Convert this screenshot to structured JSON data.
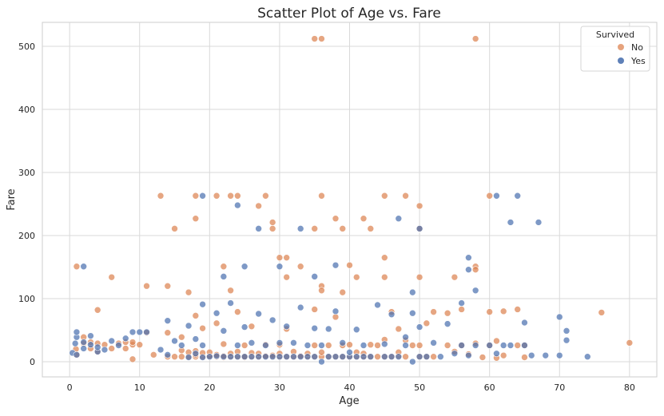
{
  "chart_data": {
    "type": "scatter",
    "title": "Scatter Plot of Age vs. Fare",
    "xlabel": "Age",
    "ylabel": "Fare",
    "xlim": [
      -3.9,
      83.9
    ],
    "ylim": [
      -24,
      538
    ],
    "xticks": [
      0,
      10,
      20,
      30,
      40,
      50,
      60,
      70,
      80
    ],
    "yticks": [
      0,
      100,
      200,
      300,
      400,
      500
    ],
    "grid": true,
    "legend": {
      "title": "Survived",
      "placement": "top-right"
    },
    "series": [
      {
        "name": "No",
        "color": "#dd8452",
        "points": [
          [
            35,
            512
          ],
          [
            36,
            512
          ],
          [
            58,
            512
          ],
          [
            13,
            263
          ],
          [
            18,
            263
          ],
          [
            21,
            263
          ],
          [
            23,
            263
          ],
          [
            24,
            263
          ],
          [
            28,
            263
          ],
          [
            36,
            263
          ],
          [
            45,
            263
          ],
          [
            48,
            263
          ],
          [
            60,
            263
          ],
          [
            18,
            227
          ],
          [
            38,
            227
          ],
          [
            42,
            227
          ],
          [
            15,
            211
          ],
          [
            29,
            211
          ],
          [
            35,
            211
          ],
          [
            39,
            211
          ],
          [
            43,
            211
          ],
          [
            50,
            211
          ],
          [
            50,
            247
          ],
          [
            27,
            247
          ],
          [
            29,
            221
          ],
          [
            1,
            151
          ],
          [
            22,
            151
          ],
          [
            33,
            151
          ],
          [
            58,
            151
          ],
          [
            58,
            146
          ],
          [
            40,
            153
          ],
          [
            6,
            134
          ],
          [
            31,
            134
          ],
          [
            41,
            134
          ],
          [
            45,
            134
          ],
          [
            50,
            134
          ],
          [
            55,
            134
          ],
          [
            11,
            120
          ],
          [
            14,
            120
          ],
          [
            36,
            120
          ],
          [
            36,
            113
          ],
          [
            23,
            113
          ],
          [
            39,
            110
          ],
          [
            17,
            110
          ],
          [
            45,
            165
          ],
          [
            30,
            165
          ],
          [
            31,
            165
          ],
          [
            4,
            82
          ],
          [
            76,
            78
          ],
          [
            80,
            30
          ],
          [
            9,
            4
          ],
          [
            0.9,
            20
          ],
          [
            1,
            11
          ],
          [
            2,
            29
          ],
          [
            2,
            39
          ],
          [
            3,
            21
          ],
          [
            3,
            31
          ],
          [
            4,
            16
          ],
          [
            4,
            29
          ],
          [
            5,
            27
          ],
          [
            6,
            21
          ],
          [
            7,
            29
          ],
          [
            8,
            21
          ],
          [
            8,
            31
          ],
          [
            9,
            27
          ],
          [
            9,
            31
          ],
          [
            10,
            27
          ],
          [
            11,
            46
          ],
          [
            12,
            11
          ],
          [
            14,
            8
          ],
          [
            14,
            46
          ],
          [
            15,
            8
          ],
          [
            16,
            8
          ],
          [
            16,
            18
          ],
          [
            16,
            39
          ],
          [
            17,
            8
          ],
          [
            17,
            15
          ],
          [
            18,
            8
          ],
          [
            18,
            11
          ],
          [
            18,
            17
          ],
          [
            18,
            73
          ],
          [
            19,
            8
          ],
          [
            19,
            14
          ],
          [
            19,
            53
          ],
          [
            20,
            8
          ],
          [
            20,
            9
          ],
          [
            20,
            15
          ],
          [
            21,
            8
          ],
          [
            21,
            11
          ],
          [
            21,
            61
          ],
          [
            22,
            7
          ],
          [
            22,
            9
          ],
          [
            22,
            28
          ],
          [
            23,
            8
          ],
          [
            23,
            13
          ],
          [
            24,
            8
          ],
          [
            24,
            16
          ],
          [
            24,
            79
          ],
          [
            25,
            7
          ],
          [
            25,
            8
          ],
          [
            25,
            26
          ],
          [
            26,
            8
          ],
          [
            26,
            14
          ],
          [
            26,
            56
          ],
          [
            27,
            8
          ],
          [
            27,
            13
          ],
          [
            28,
            8
          ],
          [
            28,
            9
          ],
          [
            28,
            27
          ],
          [
            29,
            8
          ],
          [
            29,
            10
          ],
          [
            30,
            8
          ],
          [
            30,
            13
          ],
          [
            30,
            27
          ],
          [
            31,
            8
          ],
          [
            31,
            52
          ],
          [
            32,
            8
          ],
          [
            32,
            16
          ],
          [
            33,
            8
          ],
          [
            33,
            9
          ],
          [
            34,
            8
          ],
          [
            34,
            13
          ],
          [
            35,
            8
          ],
          [
            35,
            26
          ],
          [
            35,
            83
          ],
          [
            36,
            8
          ],
          [
            36,
            15
          ],
          [
            37,
            8
          ],
          [
            37,
            26
          ],
          [
            38,
            8
          ],
          [
            38,
            71
          ],
          [
            39,
            8
          ],
          [
            39,
            26
          ],
          [
            40,
            8
          ],
          [
            40,
            27
          ],
          [
            41,
            8
          ],
          [
            41,
            15
          ],
          [
            42,
            8
          ],
          [
            42,
            13
          ],
          [
            43,
            8
          ],
          [
            43,
            27
          ],
          [
            44,
            8
          ],
          [
            44,
            26
          ],
          [
            45,
            8
          ],
          [
            45,
            35
          ],
          [
            46,
            8
          ],
          [
            46,
            79
          ],
          [
            47,
            9
          ],
          [
            47,
            15
          ],
          [
            47,
            52
          ],
          [
            48,
            8
          ],
          [
            48,
            34
          ],
          [
            49,
            26
          ],
          [
            50,
            8
          ],
          [
            50,
            26
          ],
          [
            51,
            8
          ],
          [
            51,
            61
          ],
          [
            52,
            8
          ],
          [
            52,
            79
          ],
          [
            54,
            26
          ],
          [
            54,
            77
          ],
          [
            55,
            16
          ],
          [
            56,
            26
          ],
          [
            56,
            83
          ],
          [
            57,
            12
          ],
          [
            58,
            29
          ],
          [
            59,
            7
          ],
          [
            60,
            26
          ],
          [
            60,
            79
          ],
          [
            61,
            6
          ],
          [
            61,
            33
          ],
          [
            62,
            10
          ],
          [
            62,
            80
          ],
          [
            64,
            26
          ],
          [
            64,
            83
          ],
          [
            65,
            7
          ],
          [
            65,
            26
          ]
        ]
      },
      {
        "name": "Yes",
        "color": "#4c72b0",
        "points": [
          [
            2,
            151
          ],
          [
            19,
            263
          ],
          [
            24,
            248
          ],
          [
            27,
            211
          ],
          [
            33,
            211
          ],
          [
            47,
            227
          ],
          [
            50,
            211
          ],
          [
            61,
            263
          ],
          [
            64,
            263
          ],
          [
            63,
            221
          ],
          [
            67,
            221
          ],
          [
            25,
            151
          ],
          [
            22,
            135
          ],
          [
            30,
            151
          ],
          [
            35,
            135
          ],
          [
            38,
            153
          ],
          [
            57,
            165
          ],
          [
            57,
            146
          ],
          [
            58,
            113
          ],
          [
            49,
            110
          ],
          [
            56,
            93
          ],
          [
            70,
            71
          ],
          [
            71,
            49
          ],
          [
            74,
            8
          ],
          [
            70,
            10
          ],
          [
            71,
            34
          ],
          [
            65,
            62
          ],
          [
            66,
            10
          ],
          [
            68,
            10
          ],
          [
            61,
            13
          ],
          [
            0.4,
            14
          ],
          [
            0.8,
            29
          ],
          [
            1,
            11
          ],
          [
            1,
            39
          ],
          [
            1,
            47
          ],
          [
            2,
            21
          ],
          [
            2,
            31
          ],
          [
            3,
            27
          ],
          [
            3,
            41
          ],
          [
            4,
            16
          ],
          [
            4,
            23
          ],
          [
            5,
            19
          ],
          [
            6,
            33
          ],
          [
            7,
            26
          ],
          [
            8,
            37
          ],
          [
            9,
            47
          ],
          [
            10,
            47
          ],
          [
            11,
            47
          ],
          [
            13,
            19
          ],
          [
            14,
            11
          ],
          [
            14,
            65
          ],
          [
            15,
            33
          ],
          [
            16,
            26
          ],
          [
            17,
            7
          ],
          [
            17,
            57
          ],
          [
            18,
            13
          ],
          [
            18,
            36
          ],
          [
            19,
            7
          ],
          [
            19,
            26
          ],
          [
            19,
            91
          ],
          [
            20,
            8
          ],
          [
            21,
            9
          ],
          [
            21,
            77
          ],
          [
            22,
            8
          ],
          [
            22,
            49
          ],
          [
            23,
            8
          ],
          [
            23,
            93
          ],
          [
            24,
            8
          ],
          [
            24,
            26
          ],
          [
            25,
            8
          ],
          [
            25,
            55
          ],
          [
            26,
            8
          ],
          [
            26,
            30
          ],
          [
            27,
            8
          ],
          [
            27,
            76
          ],
          [
            28,
            8
          ],
          [
            28,
            26
          ],
          [
            29,
            8
          ],
          [
            29,
            66
          ],
          [
            30,
            8
          ],
          [
            30,
            30
          ],
          [
            31,
            8
          ],
          [
            31,
            56
          ],
          [
            32,
            8
          ],
          [
            32,
            30
          ],
          [
            33,
            8
          ],
          [
            33,
            86
          ],
          [
            34,
            8
          ],
          [
            34,
            26
          ],
          [
            35,
            8
          ],
          [
            35,
            53
          ],
          [
            36,
            0
          ],
          [
            36,
            26
          ],
          [
            37,
            8
          ],
          [
            37,
            52
          ],
          [
            38,
            8
          ],
          [
            38,
            80
          ],
          [
            39,
            8
          ],
          [
            39,
            30
          ],
          [
            40,
            8
          ],
          [
            40,
            15
          ],
          [
            41,
            8
          ],
          [
            41,
            51
          ],
          [
            42,
            8
          ],
          [
            42,
            26
          ],
          [
            43,
            8
          ],
          [
            44,
            90
          ],
          [
            45,
            8
          ],
          [
            45,
            28
          ],
          [
            46,
            8
          ],
          [
            46,
            75
          ],
          [
            47,
            8
          ],
          [
            48,
            26
          ],
          [
            48,
            39
          ],
          [
            49,
            0
          ],
          [
            49,
            77
          ],
          [
            50,
            8
          ],
          [
            50,
            55
          ],
          [
            51,
            8
          ],
          [
            52,
            30
          ],
          [
            53,
            8
          ],
          [
            54,
            60
          ],
          [
            55,
            13
          ],
          [
            56,
            26
          ],
          [
            57,
            10
          ],
          [
            58,
            26
          ],
          [
            60,
            26
          ],
          [
            62,
            26
          ],
          [
            63,
            26
          ],
          [
            65,
            26
          ]
        ]
      }
    ]
  }
}
